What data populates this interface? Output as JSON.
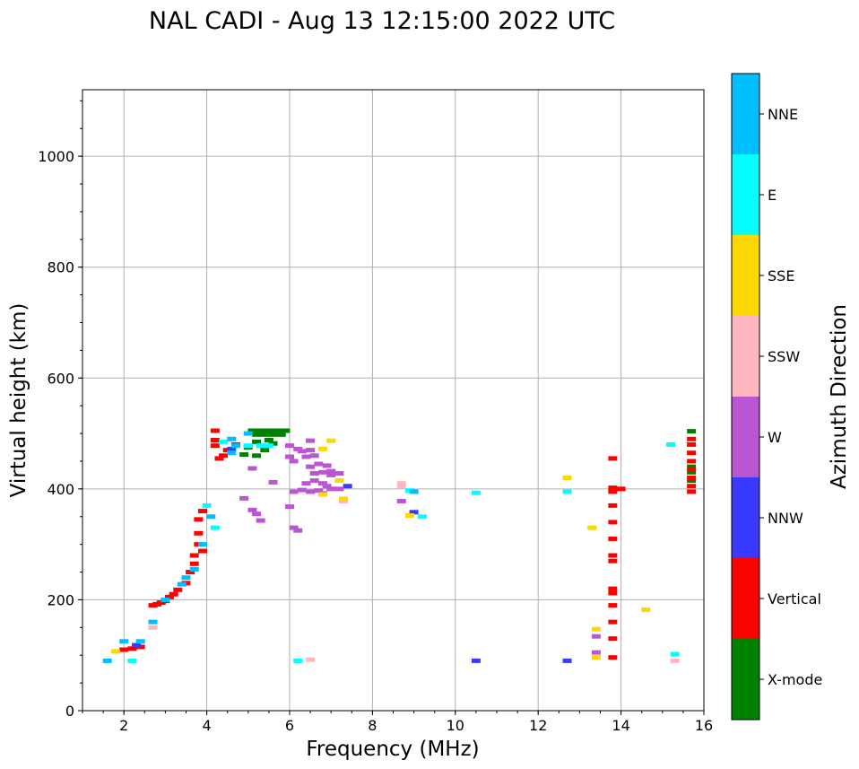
{
  "chart_data": {
    "type": "scatter",
    "title": "NAL CADI - Aug 13 12:15:00 2022 UTC",
    "xlabel": "Frequency (MHz)",
    "ylabel": "Virtual height (km)",
    "xlim": [
      1,
      16
    ],
    "ylim": [
      0,
      1120
    ],
    "xticks": [
      2,
      4,
      6,
      8,
      10,
      12,
      14,
      16
    ],
    "yticks": [
      0,
      200,
      400,
      600,
      800,
      1000
    ],
    "grid": true,
    "colorbar": {
      "title": "Azimuth Direction",
      "position": "right",
      "categories": [
        {
          "label": "X-mode",
          "color": "#008000"
        },
        {
          "label": "Vertical",
          "color": "#ff0000"
        },
        {
          "label": "NNW",
          "color": "#3a3aff"
        },
        {
          "label": "W",
          "color": "#ba55d3"
        },
        {
          "label": "SSW",
          "color": "#ffb6c1"
        },
        {
          "label": "SSE",
          "color": "#ffd700"
        },
        {
          "label": "E",
          "color": "#00ffff"
        },
        {
          "label": "NNE",
          "color": "#00bfff"
        }
      ]
    },
    "series": [
      {
        "name": "X-mode",
        "color": "#008000",
        "points": [
          [
            5.1,
            505
          ],
          [
            5.3,
            505
          ],
          [
            5.5,
            505
          ],
          [
            5.7,
            505
          ],
          [
            5.9,
            505
          ],
          [
            5.2,
            498
          ],
          [
            5.4,
            498
          ],
          [
            5.6,
            498
          ],
          [
            5.8,
            498
          ],
          [
            5.5,
            488
          ],
          [
            5.6,
            482
          ],
          [
            5.2,
            485
          ],
          [
            5.0,
            475
          ],
          [
            4.9,
            462
          ],
          [
            5.2,
            460
          ],
          [
            15.7,
            504
          ],
          [
            15.7,
            440
          ],
          [
            15.7,
            430
          ],
          [
            15.7,
            415
          ],
          [
            5.4,
            470
          ]
        ]
      },
      {
        "name": "Vertical",
        "color": "#ff0000",
        "points": [
          [
            2.0,
            110
          ],
          [
            2.2,
            112
          ],
          [
            2.4,
            115
          ],
          [
            2.7,
            190
          ],
          [
            2.8,
            192
          ],
          [
            2.9,
            195
          ],
          [
            3.0,
            198
          ],
          [
            3.1,
            205
          ],
          [
            3.2,
            210
          ],
          [
            3.3,
            218
          ],
          [
            3.5,
            230
          ],
          [
            3.6,
            250
          ],
          [
            3.7,
            265
          ],
          [
            3.7,
            280
          ],
          [
            3.8,
            300
          ],
          [
            3.8,
            320
          ],
          [
            3.8,
            345
          ],
          [
            3.9,
            360
          ],
          [
            3.9,
            288
          ],
          [
            4.3,
            455
          ],
          [
            4.2,
            478
          ],
          [
            4.2,
            488
          ],
          [
            4.2,
            505
          ],
          [
            4.5,
            470
          ],
          [
            4.7,
            480
          ],
          [
            4.4,
            460
          ],
          [
            13.8,
            96
          ],
          [
            13.8,
            130
          ],
          [
            13.8,
            160
          ],
          [
            13.8,
            190
          ],
          [
            13.8,
            212
          ],
          [
            13.8,
            220
          ],
          [
            13.8,
            270
          ],
          [
            13.8,
            280
          ],
          [
            13.8,
            310
          ],
          [
            13.8,
            340
          ],
          [
            13.8,
            370
          ],
          [
            13.8,
            395
          ],
          [
            13.8,
            402
          ],
          [
            13.8,
            455
          ],
          [
            14.0,
            400
          ],
          [
            15.7,
            395
          ],
          [
            15.7,
            405
          ],
          [
            15.7,
            420
          ],
          [
            15.7,
            435
          ],
          [
            15.7,
            450
          ],
          [
            15.7,
            465
          ],
          [
            15.7,
            480
          ],
          [
            15.7,
            490
          ]
        ]
      },
      {
        "name": "NNW",
        "color": "#3a3aff",
        "points": [
          [
            9.0,
            358
          ],
          [
            10.5,
            90
          ],
          [
            12.7,
            90
          ],
          [
            7.4,
            405
          ],
          [
            2.3,
            118
          ],
          [
            4.6,
            472
          ]
        ]
      },
      {
        "name": "W",
        "color": "#ba55d3",
        "points": [
          [
            4.9,
            383
          ],
          [
            5.1,
            362
          ],
          [
            5.2,
            355
          ],
          [
            5.3,
            343
          ],
          [
            5.1,
            437
          ],
          [
            5.6,
            412
          ],
          [
            6.0,
            368
          ],
          [
            6.1,
            330
          ],
          [
            6.2,
            325
          ],
          [
            6.1,
            395
          ],
          [
            6.3,
            398
          ],
          [
            6.5,
            395
          ],
          [
            6.7,
            397
          ],
          [
            6.8,
            392
          ],
          [
            6.4,
            410
          ],
          [
            6.6,
            415
          ],
          [
            6.8,
            410
          ],
          [
            6.9,
            405
          ],
          [
            7.0,
            400
          ],
          [
            7.2,
            400
          ],
          [
            6.6,
            428
          ],
          [
            6.8,
            430
          ],
          [
            7.0,
            432
          ],
          [
            7.2,
            428
          ],
          [
            6.5,
            440
          ],
          [
            6.7,
            445
          ],
          [
            6.9,
            442
          ],
          [
            6.4,
            458
          ],
          [
            6.6,
            460
          ],
          [
            6.3,
            468
          ],
          [
            6.5,
            487
          ],
          [
            6.0,
            478
          ],
          [
            6.2,
            472
          ],
          [
            6.0,
            458
          ],
          [
            6.1,
            450
          ],
          [
            6.5,
            470
          ],
          [
            7.0,
            425
          ],
          [
            13.4,
            134
          ],
          [
            13.4,
            105
          ],
          [
            8.7,
            378
          ]
        ]
      },
      {
        "name": "SSW",
        "color": "#ffb6c1",
        "points": [
          [
            8.7,
            405
          ],
          [
            8.7,
            410
          ],
          [
            6.5,
            92
          ],
          [
            15.3,
            90
          ],
          [
            7.3,
            378
          ],
          [
            2.7,
            150
          ]
        ]
      },
      {
        "name": "SSE",
        "color": "#ffd700",
        "points": [
          [
            7.0,
            487
          ],
          [
            6.8,
            472
          ],
          [
            6.8,
            390
          ],
          [
            7.2,
            415
          ],
          [
            7.3,
            382
          ],
          [
            8.9,
            352
          ],
          [
            12.7,
            420
          ],
          [
            13.3,
            330
          ],
          [
            13.4,
            147
          ],
          [
            13.4,
            96
          ],
          [
            14.6,
            182
          ],
          [
            1.8,
            107
          ]
        ]
      },
      {
        "name": "E",
        "color": "#00ffff",
        "points": [
          [
            6.2,
            90
          ],
          [
            8.9,
            397
          ],
          [
            9.2,
            350
          ],
          [
            10.5,
            393
          ],
          [
            12.7,
            395
          ],
          [
            15.2,
            480
          ],
          [
            15.3,
            102
          ],
          [
            2.2,
            90
          ],
          [
            4.0,
            370
          ],
          [
            4.4,
            485
          ],
          [
            5.0,
            478
          ],
          [
            5.3,
            478
          ],
          [
            5.5,
            478
          ],
          [
            4.2,
            330
          ]
        ]
      },
      {
        "name": "NNE",
        "color": "#00bfff",
        "points": [
          [
            1.6,
            90
          ],
          [
            2.0,
            125
          ],
          [
            2.4,
            125
          ],
          [
            2.7,
            160
          ],
          [
            3.0,
            200
          ],
          [
            3.4,
            228
          ],
          [
            3.5,
            240
          ],
          [
            3.7,
            255
          ],
          [
            3.9,
            300
          ],
          [
            4.1,
            350
          ],
          [
            4.6,
            465
          ],
          [
            4.7,
            478
          ],
          [
            5.0,
            500
          ],
          [
            4.6,
            490
          ],
          [
            9.0,
            395
          ]
        ]
      }
    ]
  }
}
